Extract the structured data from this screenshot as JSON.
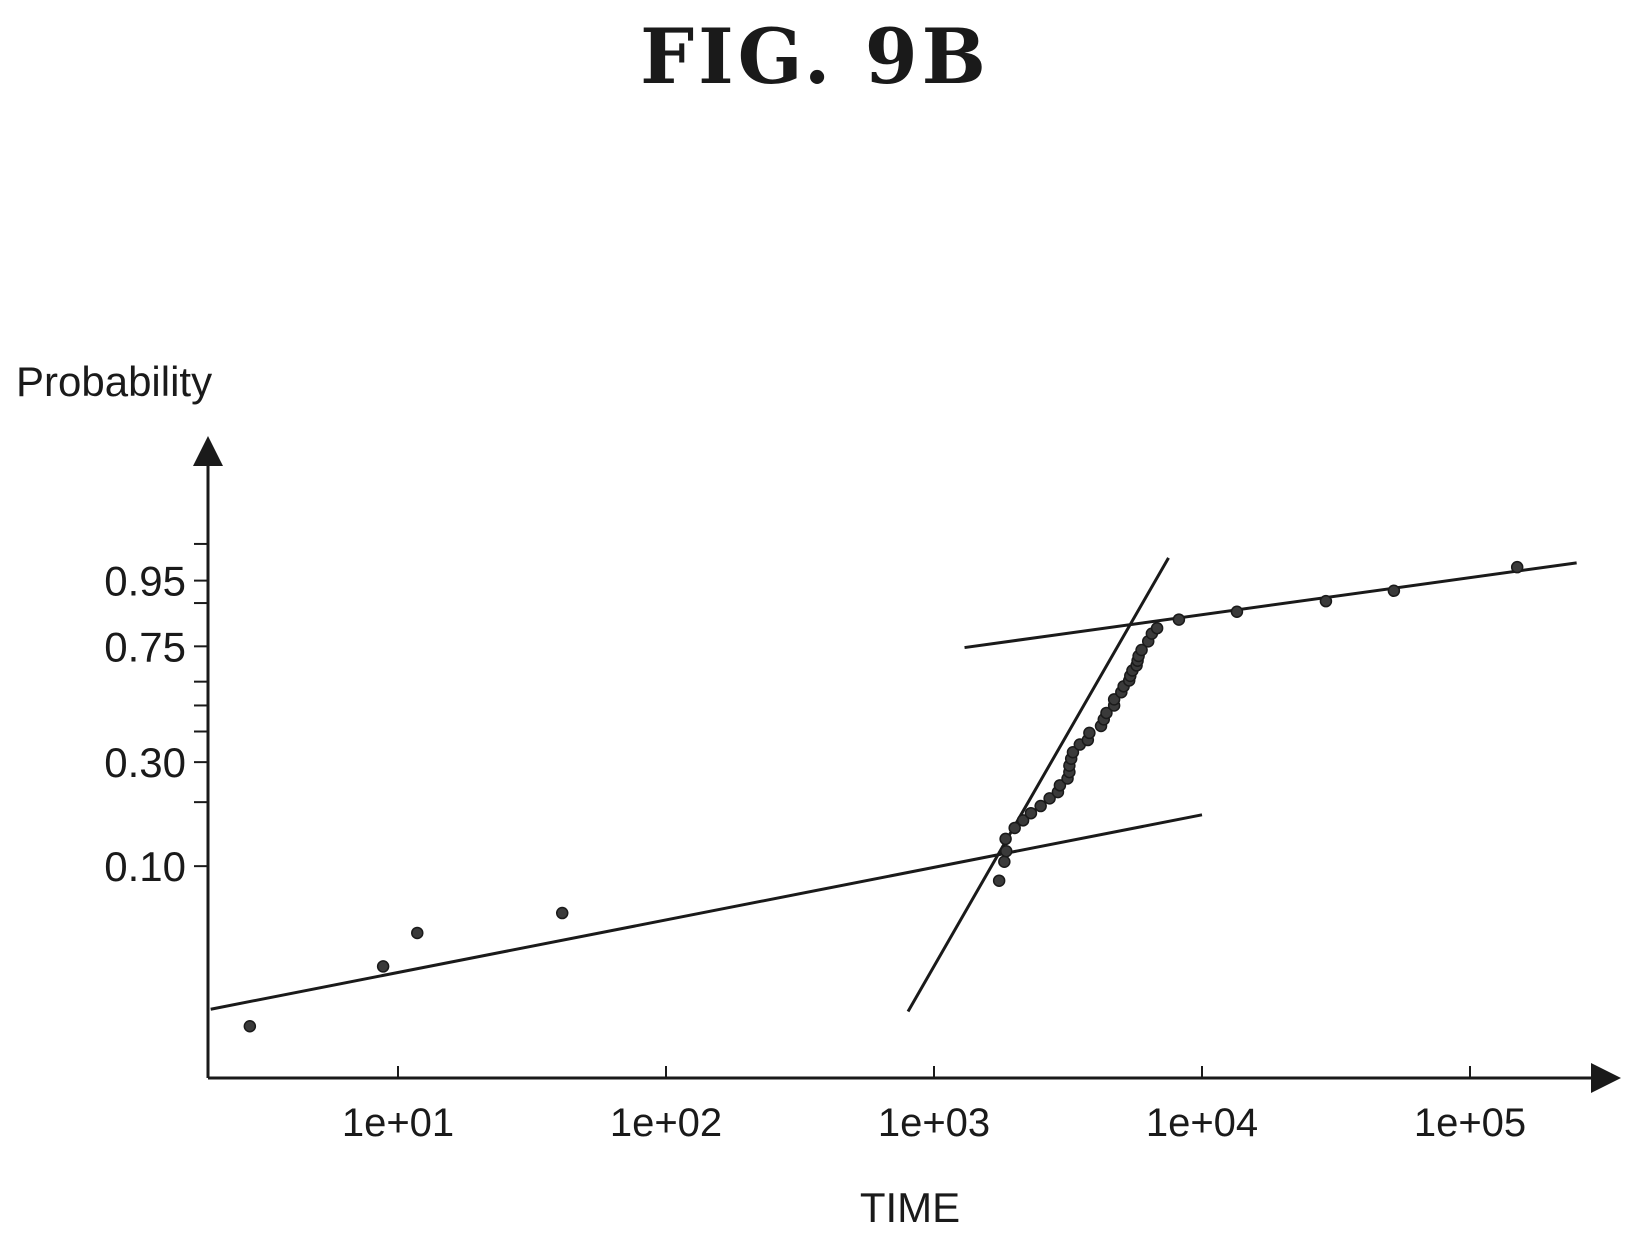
{
  "figure": {
    "title": "FIG. 9B"
  },
  "chart_data": {
    "type": "scatter",
    "title": "FIG. 9B",
    "xlabel": "TIME",
    "ylabel": "Probability",
    "x_scale": "log",
    "y_scale": "weibull",
    "xlim": [
      2,
      300000
    ],
    "x_ticks": [
      {
        "value": 10,
        "label": "1e+01"
      },
      {
        "value": 100,
        "label": "1e+02"
      },
      {
        "value": 1000,
        "label": "1e+03"
      },
      {
        "value": 10000,
        "label": "1e+04"
      },
      {
        "value": 100000,
        "label": "1e+05"
      }
    ],
    "y_ticks": [
      {
        "value": 0.1,
        "label": "0.10"
      },
      {
        "value": 0.3,
        "label": "0.30"
      },
      {
        "value": 0.75,
        "label": "0.75"
      },
      {
        "value": 0.95,
        "label": "0.95"
      }
    ],
    "y_minor_ticks": [
      0.2,
      0.4,
      0.5,
      0.6,
      0.9,
      0.99
    ],
    "grid": false,
    "points": [
      [
        2.8,
        0.016
      ],
      [
        8.8,
        0.032
      ],
      [
        11.8,
        0.047
      ],
      [
        41,
        0.059
      ],
      [
        1750,
        0.085
      ],
      [
        1830,
        0.105
      ],
      [
        1860,
        0.118
      ],
      [
        1850,
        0.135
      ],
      [
        2000,
        0.152
      ],
      [
        2150,
        0.165
      ],
      [
        2300,
        0.178
      ],
      [
        2500,
        0.192
      ],
      [
        2700,
        0.208
      ],
      [
        2900,
        0.222
      ],
      [
        2950,
        0.238
      ],
      [
        3150,
        0.255
      ],
      [
        3200,
        0.272
      ],
      [
        3200,
        0.29
      ],
      [
        3250,
        0.31
      ],
      [
        3300,
        0.33
      ],
      [
        3500,
        0.355
      ],
      [
        3750,
        0.37
      ],
      [
        3800,
        0.395
      ],
      [
        4200,
        0.42
      ],
      [
        4300,
        0.445
      ],
      [
        4400,
        0.47
      ],
      [
        4700,
        0.5
      ],
      [
        4700,
        0.525
      ],
      [
        5000,
        0.555
      ],
      [
        5100,
        0.58
      ],
      [
        5350,
        0.605
      ],
      [
        5400,
        0.625
      ],
      [
        5500,
        0.648
      ],
      [
        5700,
        0.67
      ],
      [
        5750,
        0.69
      ],
      [
        5800,
        0.71
      ],
      [
        5950,
        0.735
      ],
      [
        6300,
        0.77
      ],
      [
        6500,
        0.8
      ],
      [
        6800,
        0.82
      ],
      [
        8200,
        0.85
      ],
      [
        13500,
        0.875
      ],
      [
        29000,
        0.905
      ],
      [
        52000,
        0.93
      ],
      [
        150000,
        0.97
      ]
    ],
    "fit_lines": [
      {
        "x": [
          2,
          10000
        ],
        "y": [
          0.0195,
          0.175
        ]
      },
      {
        "x": [
          800,
          7500
        ],
        "y": [
          0.019,
          0.98
        ]
      },
      {
        "x": [
          1300,
          250000
        ],
        "y": [
          0.745,
          0.975
        ]
      }
    ]
  }
}
